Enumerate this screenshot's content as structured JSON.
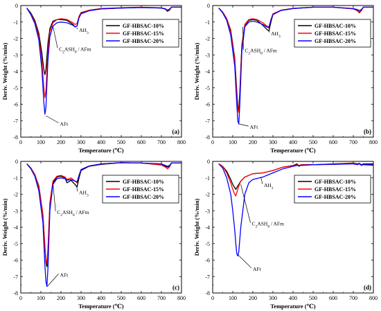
{
  "legend_colors": [
    "#000000",
    "#ff0000",
    "#0000ff"
  ],
  "chart_data": [
    {
      "type": "line",
      "panel_label": "(a)",
      "xlabel": "Temperature (℃)",
      "ylabel": "Deriv. Weight (%/min)",
      "xlim": [
        0,
        800
      ],
      "ylim": [
        -8,
        0
      ],
      "xticks": [
        "0",
        "100",
        "200",
        "300",
        "400",
        "500",
        "600",
        "700",
        "800"
      ],
      "yticks": [
        "0",
        "-1",
        "-2",
        "-3",
        "-4",
        "-5",
        "-6",
        "-7",
        "-8"
      ],
      "grid": false,
      "legend_position": "top-right",
      "annotations": [
        {
          "text": "AH₃",
          "point": [
            278,
            -1.35
          ],
          "label_at": [
            290,
            -1.6
          ]
        },
        {
          "text": "C₂ASH₈ / AFm",
          "point": [
            160,
            -1.25
          ],
          "label_at": [
            190,
            -2.75
          ]
        },
        {
          "text": "AFt",
          "point": [
            125,
            -6.7
          ],
          "label_at": [
            195,
            -7.3
          ]
        }
      ],
      "series": [
        {
          "name": "GF-HBSAC-10%",
          "color": "#000000",
          "x": [
            30,
            50,
            70,
            90,
            105,
            115,
            120,
            125,
            135,
            145,
            160,
            180,
            200,
            230,
            260,
            270,
            280,
            290,
            300,
            340,
            400,
            500,
            600,
            700,
            720,
            730,
            740,
            750,
            800
          ],
          "y": [
            -0.15,
            -0.45,
            -0.9,
            -1.7,
            -2.9,
            -3.9,
            -4.2,
            -3.9,
            -2.3,
            -1.4,
            -0.95,
            -0.85,
            -0.85,
            -0.9,
            -1.15,
            -1.3,
            -1.25,
            -0.7,
            -0.45,
            -0.3,
            -0.2,
            -0.15,
            -0.12,
            -0.15,
            -0.22,
            -0.35,
            -0.28,
            -0.1,
            -0.1
          ]
        },
        {
          "name": "GF-HBSAC-15%",
          "color": "#ff0000",
          "x": [
            30,
            50,
            70,
            90,
            105,
            115,
            120,
            125,
            135,
            145,
            160,
            180,
            200,
            230,
            260,
            270,
            280,
            290,
            300,
            340,
            400,
            500,
            600,
            700,
            720,
            730,
            740,
            750,
            800
          ],
          "y": [
            -0.15,
            -0.5,
            -1.0,
            -1.9,
            -3.4,
            -5.0,
            -5.6,
            -5.2,
            -2.8,
            -1.6,
            -1.05,
            -0.85,
            -0.8,
            -0.85,
            -1.05,
            -1.15,
            -1.1,
            -0.65,
            -0.42,
            -0.28,
            -0.18,
            -0.13,
            -0.1,
            -0.14,
            -0.2,
            -0.3,
            -0.25,
            -0.1,
            -0.1
          ]
        },
        {
          "name": "GF-HBSAC-20%",
          "color": "#0000ff",
          "x": [
            30,
            50,
            70,
            90,
            105,
            115,
            120,
            125,
            135,
            145,
            160,
            180,
            200,
            230,
            260,
            270,
            280,
            290,
            300,
            340,
            400,
            500,
            600,
            700,
            720,
            730,
            740,
            750,
            800
          ],
          "y": [
            -0.15,
            -0.55,
            -1.1,
            -2.1,
            -3.9,
            -5.9,
            -6.6,
            -6.2,
            -3.3,
            -1.9,
            -1.25,
            -1.05,
            -1.0,
            -1.05,
            -1.2,
            -1.3,
            -1.25,
            -0.75,
            -0.5,
            -0.32,
            -0.2,
            -0.15,
            -0.12,
            -0.15,
            -0.2,
            -0.28,
            -0.22,
            -0.1,
            -0.1
          ]
        }
      ]
    },
    {
      "type": "line",
      "panel_label": "(b)",
      "xlabel": "Temperature (℃)",
      "ylabel": "Deriv. Weight (%/min)",
      "xlim": [
        0,
        800
      ],
      "ylim": [
        -8,
        0
      ],
      "xticks": [
        "0",
        "100",
        "200",
        "300",
        "400",
        "500",
        "600",
        "700",
        "800"
      ],
      "yticks": [
        "0",
        "-1",
        "-2",
        "-3",
        "-4",
        "-5",
        "-6",
        "-7",
        "-8"
      ],
      "grid": false,
      "legend_position": "top-right",
      "annotations": [
        {
          "text": "AH₃",
          "point": [
            280,
            -1.5
          ],
          "label_at": [
            290,
            -1.8
          ]
        },
        {
          "text": "C₂ASH₈ / AFm",
          "point": [
            150,
            -1.3
          ],
          "label_at": [
            160,
            -2.85
          ]
        },
        {
          "text": "AFt",
          "point": [
            132,
            -7.2
          ],
          "label_at": [
            185,
            -7.5
          ]
        }
      ],
      "series": [
        {
          "name": "GF-HBSAC-10%",
          "color": "#000000",
          "x": [
            30,
            50,
            70,
            90,
            110,
            120,
            125,
            130,
            135,
            145,
            160,
            180,
            200,
            220,
            250,
            270,
            280,
            290,
            300,
            340,
            400,
            500,
            600,
            700,
            720,
            730,
            740,
            750,
            800
          ],
          "y": [
            -0.15,
            -0.4,
            -0.8,
            -1.5,
            -3.2,
            -5.2,
            -6.1,
            -6.3,
            -5.3,
            -2.4,
            -1.2,
            -0.9,
            -0.85,
            -0.9,
            -1.2,
            -1.45,
            -1.55,
            -1.0,
            -0.55,
            -0.3,
            -0.18,
            -0.1,
            -0.1,
            -0.2,
            -0.3,
            -0.4,
            -0.3,
            -0.1,
            -0.1
          ]
        },
        {
          "name": "GF-HBSAC-15%",
          "color": "#ff0000",
          "x": [
            30,
            50,
            70,
            90,
            110,
            120,
            125,
            130,
            135,
            145,
            160,
            180,
            200,
            220,
            250,
            270,
            280,
            290,
            300,
            340,
            400,
            500,
            600,
            700,
            720,
            730,
            740,
            750,
            800
          ],
          "y": [
            -0.15,
            -0.4,
            -0.8,
            -1.6,
            -3.3,
            -5.4,
            -6.3,
            -6.5,
            -5.5,
            -2.5,
            -1.15,
            -0.85,
            -0.8,
            -0.85,
            -1.05,
            -1.25,
            -1.3,
            -0.85,
            -0.5,
            -0.28,
            -0.17,
            -0.1,
            -0.1,
            -0.2,
            -0.32,
            -0.45,
            -0.32,
            -0.1,
            -0.1
          ]
        },
        {
          "name": "GF-HBSAC-20%",
          "color": "#0000ff",
          "x": [
            30,
            50,
            70,
            90,
            110,
            120,
            125,
            130,
            135,
            145,
            160,
            180,
            200,
            220,
            250,
            270,
            280,
            290,
            300,
            340,
            400,
            500,
            600,
            700,
            720,
            730,
            740,
            750,
            800
          ],
          "y": [
            -0.15,
            -0.45,
            -0.9,
            -1.8,
            -3.7,
            -6.0,
            -7.0,
            -7.2,
            -6.1,
            -2.8,
            -1.3,
            -1.0,
            -0.95,
            -1.0,
            -1.15,
            -1.3,
            -1.35,
            -0.9,
            -0.55,
            -0.3,
            -0.18,
            -0.1,
            -0.1,
            -0.18,
            -0.25,
            -0.3,
            -0.25,
            -0.1,
            -0.1
          ]
        }
      ]
    },
    {
      "type": "line",
      "panel_label": "(c)",
      "xlabel": "Temperature (℃)",
      "ylabel": "Deriv. Weight (%/min)",
      "xlim": [
        0,
        800
      ],
      "ylim": [
        -8,
        0
      ],
      "xticks": [
        "0",
        "100",
        "200",
        "300",
        "400",
        "500",
        "600",
        "700",
        "800"
      ],
      "yticks": [
        "0",
        "-1",
        "-2",
        "-3",
        "-4",
        "-5",
        "-6",
        "-7",
        "-8"
      ],
      "grid": false,
      "legend_position": "top-right",
      "annotations": [
        {
          "text": "AH₃",
          "point": [
            278,
            -1.55
          ],
          "label_at": [
            290,
            -2.0
          ]
        },
        {
          "text": "C₂ASH₈ / AFm",
          "point": [
            160,
            -1.3
          ],
          "label_at": [
            180,
            -3.2
          ]
        },
        {
          "text": "AFt",
          "point": [
            132,
            -7.6
          ],
          "label_at": [
            195,
            -7.0
          ]
        }
      ],
      "series": [
        {
          "name": "GF-HBSAC-10%",
          "color": "#000000",
          "x": [
            30,
            50,
            70,
            90,
            110,
            120,
            125,
            130,
            135,
            145,
            160,
            180,
            200,
            220,
            230,
            250,
            270,
            280,
            290,
            300,
            340,
            400,
            500,
            600,
            700,
            720,
            730,
            740,
            750,
            800
          ],
          "y": [
            -0.15,
            -0.4,
            -0.8,
            -1.5,
            -3.2,
            -5.2,
            -6.1,
            -6.4,
            -5.5,
            -2.6,
            -1.3,
            -0.95,
            -0.9,
            -1.0,
            -1.3,
            -1.15,
            -1.4,
            -1.55,
            -1.0,
            -0.55,
            -0.3,
            -0.18,
            -0.08,
            -0.1,
            -0.2,
            -0.3,
            -0.35,
            -0.3,
            -0.1,
            -0.1
          ]
        },
        {
          "name": "GF-HBSAC-15%",
          "color": "#ff0000",
          "x": [
            30,
            50,
            70,
            90,
            110,
            120,
            125,
            130,
            135,
            145,
            160,
            180,
            200,
            220,
            230,
            250,
            270,
            280,
            290,
            300,
            340,
            400,
            500,
            600,
            700,
            720,
            730,
            740,
            750,
            800
          ],
          "y": [
            -0.15,
            -0.4,
            -0.8,
            -1.6,
            -3.2,
            -5.1,
            -6.0,
            -6.2,
            -5.3,
            -2.5,
            -1.2,
            -0.9,
            -0.85,
            -0.95,
            -1.1,
            -1.0,
            -1.2,
            -1.3,
            -0.85,
            -0.5,
            -0.28,
            -0.16,
            -0.08,
            -0.1,
            -0.22,
            -0.35,
            -0.45,
            -0.35,
            -0.1,
            -0.1
          ]
        },
        {
          "name": "GF-HBSAC-20%",
          "color": "#0000ff",
          "x": [
            30,
            50,
            70,
            90,
            110,
            120,
            125,
            130,
            135,
            145,
            160,
            180,
            200,
            220,
            230,
            250,
            270,
            280,
            290,
            300,
            340,
            400,
            500,
            600,
            700,
            720,
            730,
            740,
            750,
            800
          ],
          "y": [
            -0.15,
            -0.45,
            -0.9,
            -1.8,
            -3.7,
            -6.3,
            -7.3,
            -7.6,
            -6.5,
            -3.0,
            -1.4,
            -1.05,
            -1.0,
            -1.05,
            -1.15,
            -1.1,
            -1.2,
            -1.25,
            -0.85,
            -0.5,
            -0.28,
            -0.15,
            -0.08,
            -0.1,
            -0.15,
            -0.25,
            -0.3,
            -0.25,
            -0.1,
            -0.1
          ]
        }
      ]
    },
    {
      "type": "line",
      "panel_label": "(d)",
      "xlabel": "Temperature (℃)",
      "ylabel": "Deriv. Weight (%/min)",
      "xlim": [
        0,
        800
      ],
      "ylim": [
        -8,
        0
      ],
      "xticks": [
        "0",
        "100",
        "200",
        "300",
        "400",
        "500",
        "600",
        "700",
        "800"
      ],
      "yticks": [
        "0",
        "-1",
        "-2",
        "-3",
        "-4",
        "-5",
        "-6",
        "-7",
        "-8"
      ],
      "grid": false,
      "legend_position": "top-right",
      "annotations": [
        {
          "text": "AH₃",
          "point": [
            240,
            -0.95
          ],
          "label_at": [
            255,
            -1.55
          ]
        },
        {
          "text": "C₂ASH₈ / AFm",
          "point": [
            140,
            -1.4
          ],
          "label_at": [
            195,
            -3.9
          ]
        },
        {
          "text": "AFt",
          "point": [
            128,
            -5.7
          ],
          "label_at": [
            200,
            -6.65
          ]
        }
      ],
      "series": [
        {
          "name": "GF-HBSAC-10%",
          "color": "#000000",
          "x": [
            30,
            50,
            70,
            90,
            100,
            110,
            115,
            120,
            130,
            140,
            160,
            180,
            200,
            250,
            300,
            350,
            400,
            420,
            430,
            440,
            500,
            600,
            700,
            720,
            730,
            740,
            750,
            800
          ],
          "y": [
            -0.15,
            -0.3,
            -0.6,
            -1.1,
            -1.4,
            -1.6,
            -1.7,
            -1.6,
            -1.4,
            -1.2,
            -0.95,
            -0.85,
            -0.75,
            -0.7,
            -0.55,
            -0.35,
            -0.25,
            -0.15,
            -0.3,
            -0.2,
            -0.2,
            -0.15,
            -0.1,
            -0.15,
            -0.12,
            -0.2,
            -0.15,
            -0.15
          ]
        },
        {
          "name": "GF-HBSAC-15%",
          "color": "#ff0000",
          "x": [
            30,
            50,
            70,
            90,
            100,
            110,
            115,
            120,
            130,
            140,
            160,
            180,
            200,
            250,
            300,
            350,
            400,
            420,
            430,
            440,
            500,
            600,
            700,
            720,
            730,
            740,
            750,
            800
          ],
          "y": [
            -0.15,
            -0.3,
            -0.7,
            -1.3,
            -1.7,
            -2.0,
            -2.1,
            -1.9,
            -1.5,
            -1.2,
            -0.95,
            -0.85,
            -0.75,
            -0.7,
            -0.55,
            -0.35,
            -0.25,
            -0.2,
            -0.25,
            -0.2,
            -0.2,
            -0.15,
            -0.12,
            -0.18,
            -0.14,
            -0.25,
            -0.2,
            -0.25
          ]
        },
        {
          "name": "GF-HBSAC-20%",
          "color": "#0000ff",
          "x": [
            30,
            50,
            70,
            90,
            100,
            110,
            115,
            120,
            125,
            130,
            140,
            160,
            180,
            200,
            250,
            300,
            350,
            400,
            420,
            440,
            500,
            600,
            700,
            720,
            730,
            740,
            750,
            800
          ],
          "y": [
            -0.15,
            -0.4,
            -1.0,
            -2.0,
            -3.0,
            -4.2,
            -5.0,
            -5.6,
            -5.75,
            -5.5,
            -4.0,
            -2.0,
            -1.3,
            -1.1,
            -0.95,
            -0.7,
            -0.45,
            -0.3,
            -0.25,
            -0.25,
            -0.2,
            -0.18,
            -0.15,
            -0.2,
            -0.15,
            -0.22,
            -0.18,
            -0.2
          ]
        }
      ]
    }
  ]
}
